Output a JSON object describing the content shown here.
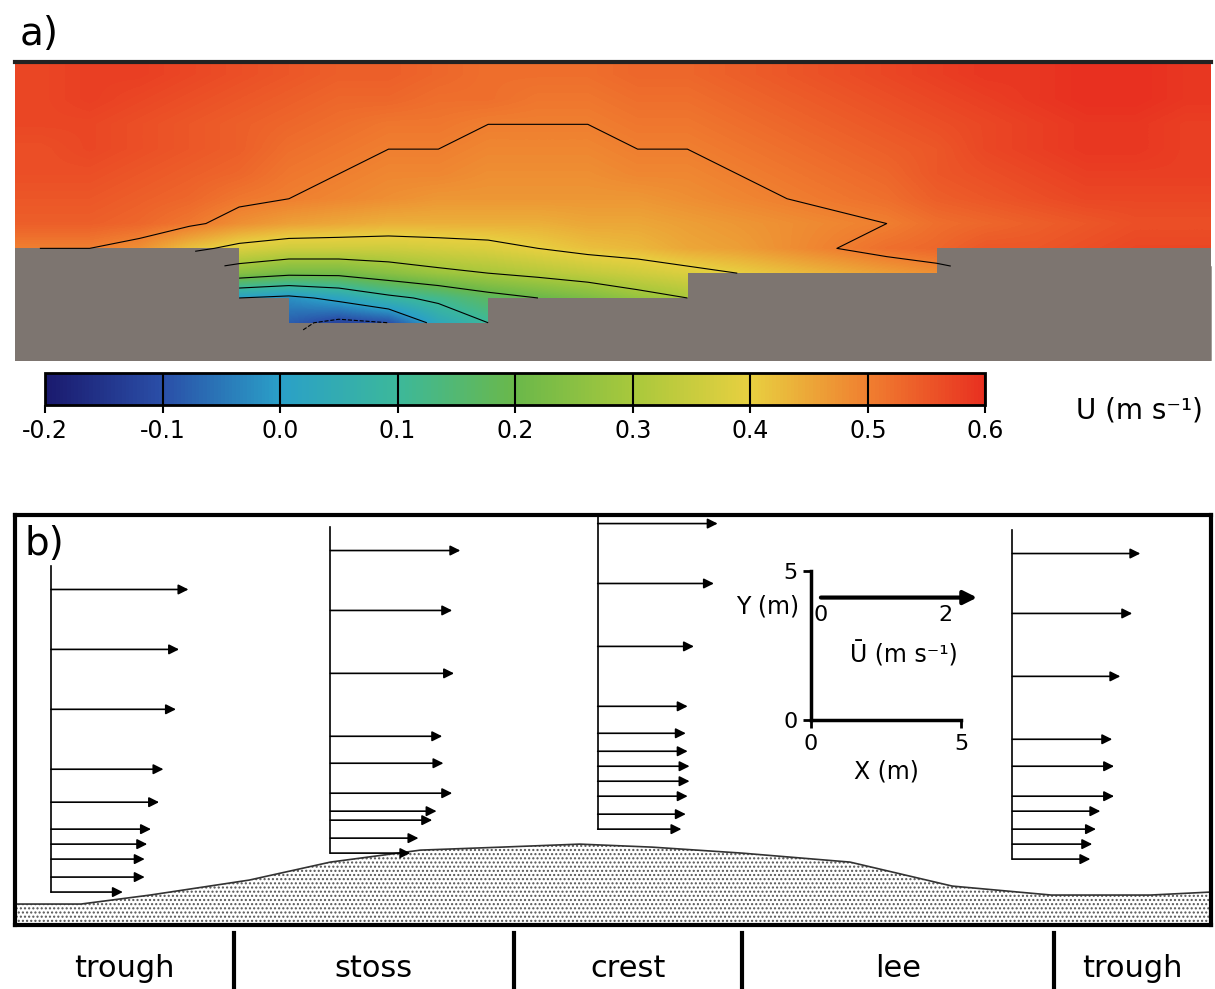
{
  "chart_data": [
    {
      "type": "heatmap",
      "panel_label": "a)",
      "xlim": [
        0,
        1
      ],
      "ylim": [
        0,
        1
      ],
      "tick_labels": false,
      "cells": [
        [
          0.57,
          0.58,
          0.58,
          0.57,
          0.56,
          0.55,
          0.54,
          0.54,
          0.53,
          0.52,
          0.52,
          0.52,
          0.53,
          0.53,
          0.54,
          0.55,
          0.56,
          0.57,
          0.58,
          0.59,
          0.59,
          0.6,
          0.6,
          0.59
        ],
        [
          0.57,
          0.58,
          0.57,
          0.56,
          0.55,
          0.54,
          0.53,
          0.53,
          0.52,
          0.52,
          0.51,
          0.51,
          0.52,
          0.52,
          0.53,
          0.54,
          0.55,
          0.56,
          0.57,
          0.58,
          0.59,
          0.6,
          0.6,
          0.59
        ],
        [
          0.57,
          0.57,
          0.56,
          0.55,
          0.54,
          0.53,
          0.52,
          0.51,
          0.51,
          0.5,
          0.5,
          0.5,
          0.51,
          0.51,
          0.52,
          0.53,
          0.54,
          0.55,
          0.56,
          0.57,
          0.58,
          0.59,
          0.59,
          0.58
        ],
        [
          0.56,
          0.57,
          0.56,
          0.55,
          0.54,
          0.52,
          0.51,
          0.5,
          0.5,
          0.49,
          0.49,
          0.49,
          0.5,
          0.5,
          0.51,
          0.52,
          0.53,
          0.54,
          0.55,
          0.57,
          0.58,
          0.59,
          0.59,
          0.58
        ],
        [
          0.56,
          0.56,
          0.55,
          0.54,
          0.53,
          0.51,
          0.5,
          0.49,
          0.49,
          0.48,
          0.48,
          0.48,
          0.49,
          0.49,
          0.5,
          0.51,
          0.52,
          0.53,
          0.55,
          0.56,
          0.57,
          0.58,
          0.58,
          0.58
        ],
        [
          0.55,
          0.55,
          0.54,
          0.53,
          0.51,
          0.5,
          0.49,
          0.48,
          0.47,
          0.47,
          0.47,
          0.47,
          0.47,
          0.48,
          0.49,
          0.5,
          0.51,
          0.52,
          0.54,
          0.55,
          0.56,
          0.57,
          0.57,
          0.57
        ],
        [
          0.54,
          0.54,
          0.53,
          0.51,
          0.48,
          0.46,
          0.45,
          0.44,
          0.44,
          0.44,
          0.44,
          0.45,
          0.45,
          0.46,
          0.47,
          0.48,
          0.49,
          0.5,
          0.52,
          0.53,
          0.54,
          0.55,
          0.56,
          0.56
        ],
        [
          0.5,
          0.5,
          0.48,
          0.42,
          0.38,
          0.36,
          0.36,
          0.36,
          0.37,
          0.38,
          0.4,
          0.42,
          0.43,
          0.45,
          0.46,
          0.48,
          0.5,
          0.52,
          0.53,
          0.55,
          0.55,
          0.56,
          0.57,
          0.57
        ],
        [
          null,
          null,
          null,
          null,
          0.25,
          0.22,
          0.22,
          0.25,
          0.28,
          0.3,
          0.32,
          0.34,
          0.36,
          0.38,
          0.4,
          0.42,
          0.44,
          0.46,
          0.48,
          null,
          null,
          null,
          null,
          null
        ],
        [
          null,
          null,
          null,
          null,
          0.0,
          -0.02,
          0.02,
          0.08,
          0.12,
          0.17,
          0.2,
          0.23,
          0.27,
          0.3,
          null,
          null,
          null,
          null,
          null,
          null,
          null,
          null,
          null,
          null
        ],
        [
          null,
          null,
          null,
          null,
          null,
          -0.08,
          -0.12,
          -0.1,
          0.03,
          0.1,
          null,
          null,
          null,
          null,
          null,
          null,
          null,
          null,
          null,
          null,
          null,
          null,
          null,
          null
        ],
        [
          null,
          null,
          null,
          null,
          null,
          null,
          -0.15,
          null,
          null,
          null,
          null,
          null,
          null,
          null,
          null,
          null,
          null,
          null,
          null,
          null,
          null,
          null,
          null,
          null
        ]
      ],
      "bed": {
        "x": [
          0,
          0.063,
          0.13,
          0.155,
          0.188,
          0.213,
          0.255,
          0.305,
          0.364,
          0.448,
          0.531,
          0.615,
          0.699,
          0.782,
          0.866,
          0.95,
          1
        ],
        "y": [
          0.315,
          0.336,
          0.336,
          0.291,
          0.171,
          0.068,
          0.034,
          0.041,
          0.086,
          0.144,
          0.188,
          0.223,
          0.264,
          0.291,
          0.308,
          0.315,
          0.315
        ]
      },
      "colorbar": {
        "label": "U (m s⁻¹)",
        "range": [
          -0.2,
          0.6
        ],
        "ticks": [
          -0.2,
          -0.1,
          0.0,
          0.1,
          0.2,
          0.3,
          0.4,
          0.5,
          0.6
        ]
      }
    },
    {
      "type": "vector_profiles",
      "panel_label": "b)",
      "xlim": [
        0,
        39.8
      ],
      "ylim": [
        0,
        13.7
      ],
      "tick_labels": false,
      "bed": {
        "x": [
          0,
          2.2,
          4.5,
          7.8,
          10.5,
          13.5,
          16.2,
          18.8,
          21.2,
          24.2,
          27.8,
          31.2,
          34.5,
          37.8,
          39.8
        ],
        "y": [
          0.7,
          0.7,
          1.0,
          1.5,
          2.1,
          2.5,
          2.6,
          2.7,
          2.6,
          2.4,
          2.1,
          1.3,
          1.0,
          1.0,
          1.1
        ]
      },
      "profiles": [
        {
          "x": 1.2,
          "heights": [
            11.2,
            9.2,
            7.2,
            5.2,
            4.1,
            3.2,
            2.7,
            2.2,
            1.6,
            1.1
          ],
          "values": [
            2.2,
            2.05,
            2.0,
            1.8,
            1.73,
            1.6,
            1.54,
            1.5,
            1.5,
            1.15
          ]
        },
        {
          "x": 10.5,
          "heights": [
            12.5,
            10.5,
            8.4,
            6.3,
            5.4,
            4.4,
            3.8,
            3.5,
            2.9,
            2.4
          ],
          "values": [
            2.08,
            1.95,
            1.98,
            1.79,
            1.81,
            1.95,
            1.7,
            1.63,
            1.41,
            1.28
          ]
        },
        {
          "x": 19.4,
          "heights": [
            13.4,
            11.4,
            9.3,
            7.3,
            6.4,
            5.8,
            5.3,
            4.8,
            4.3,
            3.7,
            3.2
          ],
          "values": [
            1.92,
            1.86,
            1.54,
            1.44,
            1.41,
            1.44,
            1.47,
            1.47,
            1.44,
            1.41,
            1.34
          ]
        },
        {
          "x": 33.2,
          "heights": [
            12.4,
            10.4,
            8.3,
            6.2,
            5.3,
            4.3,
            3.8,
            3.2,
            2.7,
            2.2
          ],
          "values": [
            2.05,
            1.92,
            1.73,
            1.6,
            1.63,
            1.63,
            1.41,
            1.34,
            1.28,
            1.25
          ]
        }
      ],
      "zones": {
        "labels": [
          "trough",
          "stoss",
          "crest",
          "lee",
          "trough"
        ],
        "boundaries": [
          7.3,
          16.6,
          24.2,
          34.6
        ]
      },
      "inset": {
        "xlabel": "X (m)",
        "ylabel": "Y (m)",
        "ulabel": "Ū (m s⁻¹)",
        "xlim": [
          0,
          5
        ],
        "ylim": [
          0,
          5
        ],
        "xticks": [
          0,
          5
        ],
        "yticks": [
          0,
          5
        ],
        "uticks": [
          0,
          2
        ],
        "scale_arrow": 2.5,
        "scale_arrow_y": 4.1
      }
    }
  ]
}
